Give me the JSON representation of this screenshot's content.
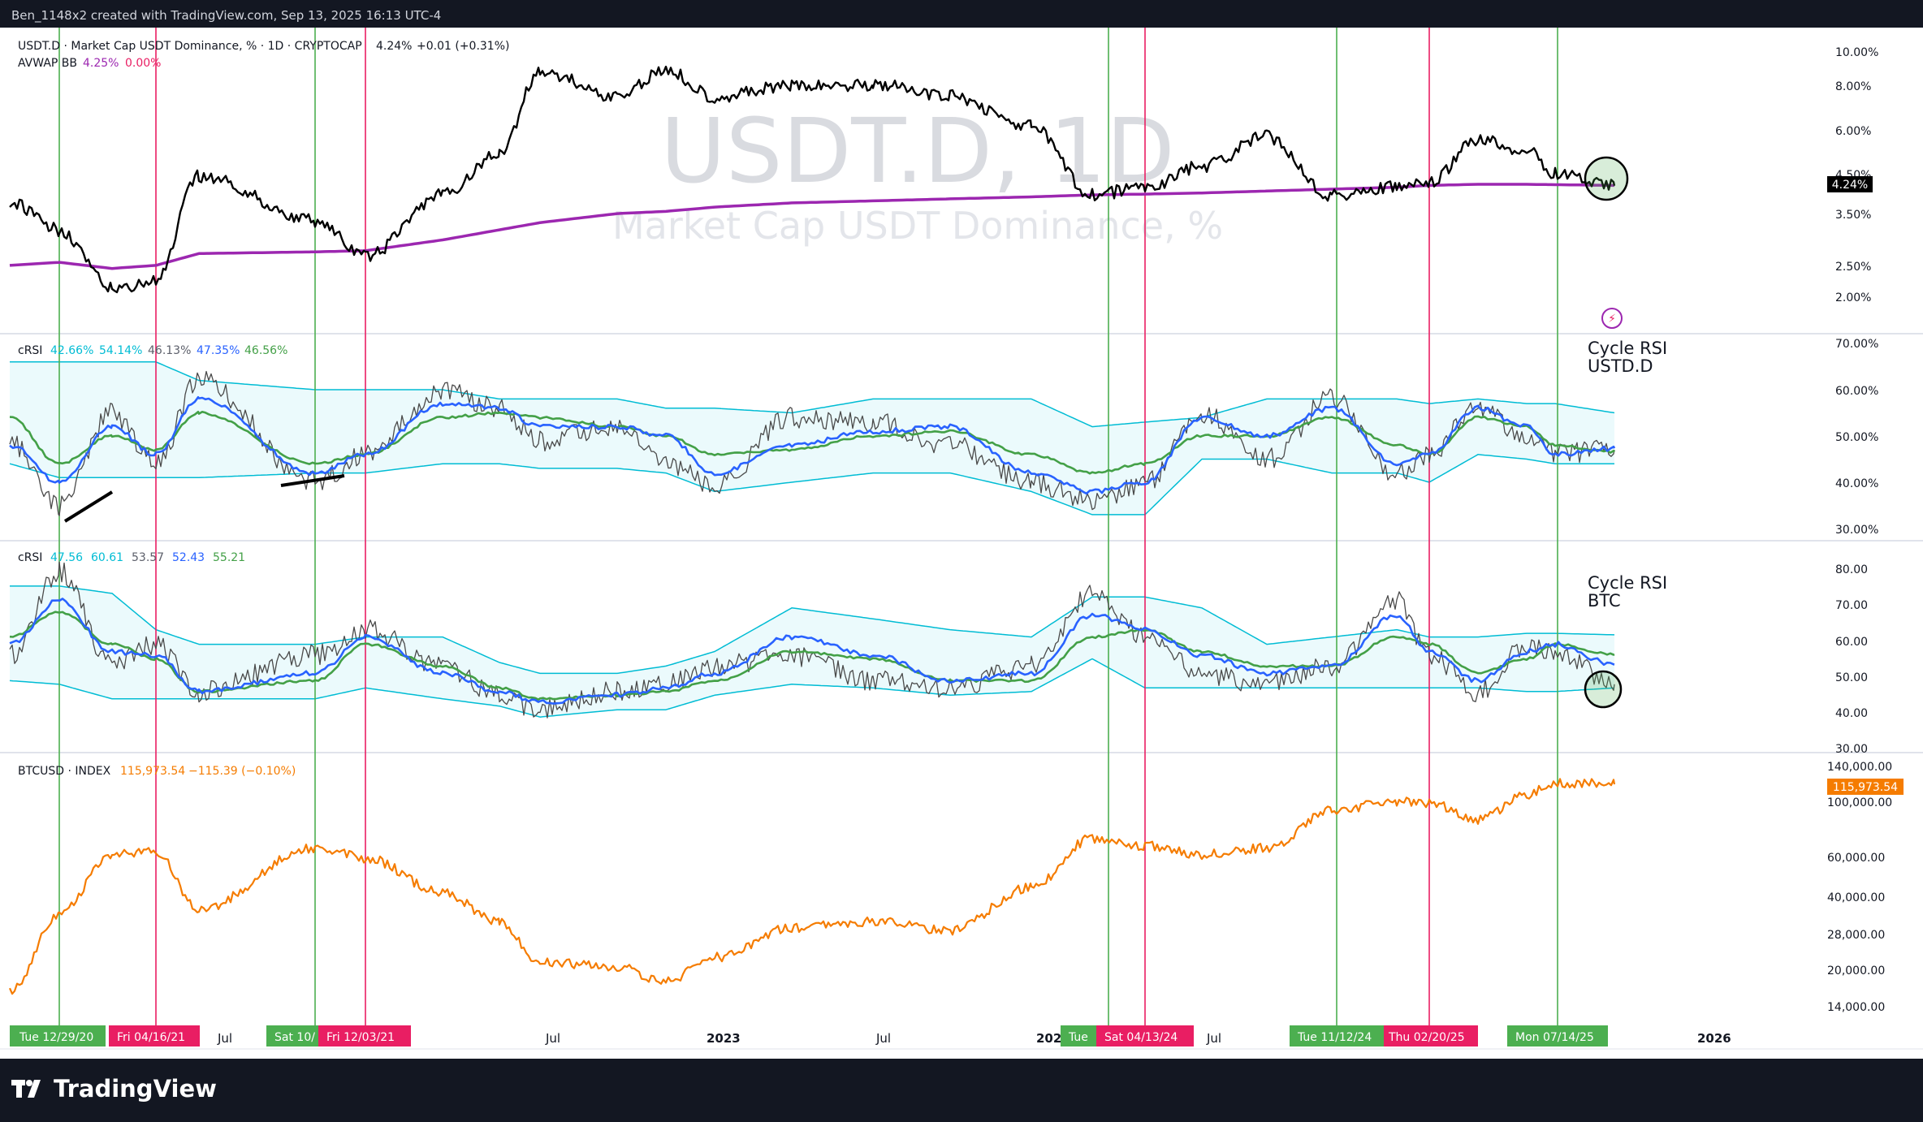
{
  "header_text": "Ben_1148x2 created with TradingView.com, Sep 13, 2025 16:13 UTC-4",
  "brand": "TradingView",
  "colors": {
    "bg": "#131722",
    "green_line": "#4caf50",
    "pink_line": "#e91e63",
    "price": "#000000",
    "avwap": "#9c27b0",
    "crsi_fast": "#2962ff",
    "crsi_slow": "#43a047",
    "band": "#00bcd4",
    "btc": "#f57c00"
  },
  "panes": {
    "p1": {
      "symbol": "USDT.D · Market Cap USDT Dominance, % · 1D · CRYPTOCAP",
      "value": "4.24%",
      "change": "+0.01 (+0.31%)",
      "ind_name": "AVWAP BB",
      "ind_v1": "4.25%",
      "ind_v2": "0.00%",
      "watermark_main": "USDT.D, 1D",
      "watermark_sub": "Market Cap USDT Dominance, %",
      "last_label": "4.24%",
      "axis": [
        "10.00%",
        "8.00%",
        "6.00%",
        "4.50%",
        "3.50%",
        "2.50%",
        "2.00%"
      ]
    },
    "p2": {
      "name": "cRSI",
      "vals": [
        "42.66%",
        "54.14%",
        "46.13%",
        "47.35%",
        "46.56%"
      ],
      "note1": "Cycle RSI",
      "note2": "USTD.D",
      "axis": [
        "70.00%",
        "60.00%",
        "50.00%",
        "40.00%",
        "30.00%"
      ]
    },
    "p3": {
      "name": "cRSI",
      "vals": [
        "47.56",
        "60.61",
        "53.57",
        "52.43",
        "55.21"
      ],
      "note1": "Cycle RSI",
      "note2": "BTC",
      "axis": [
        "80.00",
        "70.00",
        "60.00",
        "50.00",
        "40.00",
        "30.00"
      ]
    },
    "p4": {
      "symbol": "BTCUSD · INDEX",
      "value": "115,973.54",
      "change": "−115.39 (−0.10%)",
      "last_label": "115,973.54",
      "axis": [
        "140,000.00",
        "100,000.00",
        "60,000.00",
        "40,000.00",
        "28,000.00",
        "20,000.00",
        "14,000.00"
      ]
    }
  },
  "time_axis": [
    "Jul",
    "Jul",
    "2023",
    "Jul",
    "202",
    "Jul",
    "2026"
  ],
  "date_markers": [
    "Tue 12/29/20",
    "Fri 04/16/21",
    "Sat 10/",
    "Fri 12/03/21",
    "Tue",
    "Sat 04/13/24",
    "Tue 11/12/24",
    "Thu 02/20/25",
    "Mon 07/14/25"
  ],
  "chart_data": [
    {
      "type": "line",
      "title": "USDT.D · Market Cap USDT Dominance, % · 1D · CRYPTOCAP",
      "x_dates": [
        "2020-10",
        "2020-12-29",
        "2021-03",
        "2021-04-16",
        "2021-06",
        "2021-10",
        "2021-12-03",
        "2022-02",
        "2022-05",
        "2022-06",
        "2022-10",
        "2022-11",
        "2023-01",
        "2023-04",
        "2023-07",
        "2023-10",
        "2024-01",
        "2024-03",
        "2024-04-13",
        "2024-07",
        "2024-10",
        "2024-11-12",
        "2025-01",
        "2025-02-20",
        "2025-04",
        "2025-05",
        "2025-07-14",
        "2025-09"
      ],
      "series": [
        {
          "name": "USDT.D",
          "values": [
            3.8,
            3.2,
            2.2,
            2.3,
            4.5,
            3.4,
            2.7,
            4.0,
            5.2,
            8.8,
            7.5,
            8.9,
            7.5,
            8.0,
            8.1,
            7.5,
            6.2,
            4.0,
            4.2,
            4.8,
            5.8,
            4.0,
            4.2,
            4.3,
            5.7,
            5.3,
            4.6,
            4.24
          ]
        },
        {
          "name": "AVWAP",
          "values": [
            2.55,
            2.6,
            2.5,
            2.55,
            2.75,
            2.78,
            2.8,
            3.0,
            3.2,
            3.35,
            3.55,
            3.6,
            3.7,
            3.8,
            3.85,
            3.9,
            3.95,
            4.0,
            4.02,
            4.05,
            4.1,
            4.15,
            4.2,
            4.25,
            4.28,
            4.28,
            4.27,
            4.25
          ]
        }
      ],
      "ylim": [
        1.8,
        10.5
      ],
      "yscale": "log"
    },
    {
      "type": "line",
      "title": "cRSI (USDT.D)",
      "ylim": [
        30,
        70
      ],
      "series": [
        {
          "name": "cRSI",
          "values": [
            49,
            35,
            55,
            44,
            62,
            40,
            46,
            60,
            56,
            49,
            52,
            44,
            39,
            54,
            53,
            48,
            40,
            36,
            40,
            55,
            45,
            58,
            42,
            46,
            56,
            50,
            46,
            47
          ]
        },
        {
          "name": "fast",
          "values": [
            48,
            40,
            52,
            46,
            58,
            42,
            46,
            57,
            56,
            52,
            52,
            50,
            42,
            48,
            51,
            52,
            42,
            38,
            40,
            54,
            50,
            56,
            44,
            46,
            56,
            52,
            46,
            47.35
          ]
        },
        {
          "name": "slow",
          "values": [
            54,
            44,
            50,
            47,
            55,
            44,
            46,
            54,
            55,
            54,
            52,
            50,
            46,
            47,
            50,
            51,
            46,
            42,
            44,
            50,
            50,
            54,
            48,
            46,
            54,
            52,
            48,
            46.56
          ]
        },
        {
          "name": "upper band",
          "values": [
            66,
            66,
            66,
            66,
            62,
            60,
            60,
            60,
            58,
            58,
            58,
            56,
            56,
            55,
            58,
            58,
            58,
            52,
            53,
            54,
            58,
            58,
            58,
            57,
            58,
            57,
            57,
            55
          ]
        },
        {
          "name": "lower band",
          "values": [
            44,
            41,
            41,
            41,
            41,
            42,
            42,
            44,
            44,
            43,
            43,
            42,
            38,
            40,
            42,
            42,
            38,
            33,
            33,
            45,
            45,
            42,
            42,
            40,
            46,
            45,
            44,
            44
          ]
        }
      ]
    },
    {
      "type": "line",
      "title": "cRSI (BTC)",
      "ylim": [
        30,
        85
      ],
      "series": [
        {
          "name": "cRSI",
          "values": [
            55,
            78,
            52,
            58,
            45,
            55,
            62,
            52,
            44,
            40,
            45,
            47,
            52,
            55,
            48,
            46,
            52,
            72,
            60,
            50,
            47,
            52,
            70,
            55,
            45,
            58,
            56,
            47
          ]
        },
        {
          "name": "fast",
          "values": [
            58,
            70,
            56,
            55,
            45,
            50,
            60,
            50,
            45,
            42,
            44,
            46,
            50,
            60,
            55,
            48,
            50,
            66,
            62,
            55,
            50,
            52,
            66,
            56,
            48,
            56,
            58,
            52.43
          ]
        },
        {
          "name": "slow",
          "values": [
            60,
            67,
            58,
            54,
            45,
            48,
            58,
            52,
            46,
            43,
            44,
            45,
            48,
            56,
            54,
            48,
            48,
            60,
            62,
            56,
            52,
            52,
            60,
            58,
            50,
            54,
            58,
            55.21
          ]
        },
        {
          "name": "upper band",
          "values": [
            74,
            74,
            72,
            62,
            58,
            58,
            60,
            60,
            53,
            50,
            50,
            52,
            56,
            68,
            65,
            62,
            60,
            71,
            71,
            68,
            58,
            60,
            62,
            60,
            60,
            61,
            61,
            60.6
          ]
        },
        {
          "name": "lower band",
          "values": [
            48,
            47,
            43,
            43,
            43,
            43,
            46,
            43,
            41,
            38,
            40,
            40,
            44,
            47,
            46,
            44,
            45,
            54,
            46,
            46,
            46,
            46,
            46,
            46,
            46,
            45,
            45,
            46
          ]
        }
      ]
    },
    {
      "type": "line",
      "title": "BTCUSD · INDEX",
      "ylim": [
        12000,
        150000
      ],
      "yscale": "log",
      "series": [
        {
          "name": "BTCUSD",
          "values": [
            15000,
            32000,
            58000,
            60000,
            34000,
            62000,
            56000,
            40000,
            30000,
            20000,
            19000,
            16500,
            21000,
            28000,
            30000,
            27500,
            42000,
            68000,
            63000,
            58000,
            62000,
            90000,
            98000,
            96000,
            82000,
            105000,
            118000,
            115973.54
          ]
        }
      ]
    }
  ]
}
